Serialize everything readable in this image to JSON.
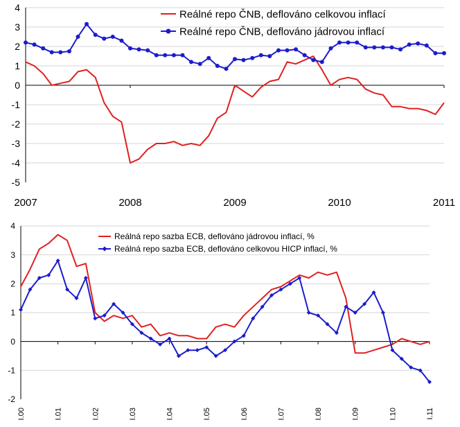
{
  "chart_data": [
    {
      "type": "line",
      "title": "",
      "xlabel": "",
      "ylabel": "",
      "ylim": [
        -5,
        4
      ],
      "y_ticks": [
        "4",
        "3",
        "2",
        "1",
        "0",
        "-1",
        "-2",
        "-3",
        "-4",
        "-5"
      ],
      "x_tick_labels": [
        "2007",
        "2008",
        "2009",
        "2010",
        "2011"
      ],
      "x_range": [
        2007,
        2011
      ],
      "grid": "horizontal",
      "legend_position": "top-right",
      "series": [
        {
          "name": "Reálné repo ČNB, deflováno celkovou inflací",
          "color": "#e02020",
          "marker": "none",
          "x": [
            2007.0,
            2007.083,
            2007.167,
            2007.25,
            2007.333,
            2007.417,
            2007.5,
            2007.583,
            2007.667,
            2007.75,
            2007.833,
            2007.917,
            2008.0,
            2008.083,
            2008.167,
            2008.25,
            2008.333,
            2008.417,
            2008.5,
            2008.583,
            2008.667,
            2008.75,
            2008.833,
            2008.917,
            2009.0,
            2009.083,
            2009.167,
            2009.25,
            2009.333,
            2009.417,
            2009.5,
            2009.583,
            2009.667,
            2009.75,
            2009.833,
            2009.917,
            2010.0,
            2010.083,
            2010.167,
            2010.25,
            2010.333,
            2010.417,
            2010.5,
            2010.583,
            2010.667,
            2010.75,
            2010.833,
            2010.917,
            2011.0
          ],
          "y": [
            1.2,
            1.0,
            0.6,
            0.0,
            0.1,
            0.2,
            0.7,
            0.8,
            0.4,
            -0.9,
            -1.6,
            -1.9,
            -4.0,
            -3.8,
            -3.3,
            -3.0,
            -3.0,
            -2.9,
            -3.1,
            -3.0,
            -3.1,
            -2.6,
            -1.7,
            -1.4,
            0.0,
            -0.3,
            -0.6,
            -0.1,
            0.2,
            0.3,
            1.2,
            1.1,
            1.3,
            1.5,
            0.8,
            0.0,
            0.3,
            0.4,
            0.3,
            -0.2,
            -0.4,
            -0.5,
            -1.1,
            -1.1,
            -1.2,
            -1.2,
            -1.3,
            -1.5,
            -0.9
          ]
        },
        {
          "name": "Reálné repo ČNB, deflováno jádrovou inflací",
          "color": "#1c1ccc",
          "marker": "circle",
          "x": [
            2007.0,
            2007.083,
            2007.167,
            2007.25,
            2007.333,
            2007.417,
            2007.5,
            2007.583,
            2007.667,
            2007.75,
            2007.833,
            2007.917,
            2008.0,
            2008.083,
            2008.167,
            2008.25,
            2008.333,
            2008.417,
            2008.5,
            2008.583,
            2008.667,
            2008.75,
            2008.833,
            2008.917,
            2009.0,
            2009.083,
            2009.167,
            2009.25,
            2009.333,
            2009.417,
            2009.5,
            2009.583,
            2009.667,
            2009.75,
            2009.833,
            2009.917,
            2010.0,
            2010.083,
            2010.167,
            2010.25,
            2010.333,
            2010.417,
            2010.5,
            2010.583,
            2010.667,
            2010.75,
            2010.833,
            2010.917,
            2011.0
          ],
          "y": [
            2.2,
            2.1,
            1.9,
            1.7,
            1.7,
            1.75,
            2.5,
            3.15,
            2.6,
            2.4,
            2.5,
            2.3,
            1.9,
            1.85,
            1.8,
            1.55,
            1.55,
            1.55,
            1.55,
            1.2,
            1.1,
            1.4,
            1.0,
            0.85,
            1.35,
            1.3,
            1.4,
            1.55,
            1.5,
            1.8,
            1.8,
            1.85,
            1.55,
            1.3,
            1.2,
            1.9,
            2.2,
            2.2,
            2.2,
            1.95,
            1.95,
            1.95,
            1.95,
            1.85,
            2.1,
            2.15,
            2.05,
            1.65,
            1.65
          ]
        }
      ]
    },
    {
      "type": "line",
      "title": "",
      "xlabel": "",
      "ylabel": "",
      "ylim": [
        -2,
        4
      ],
      "y_ticks": [
        "4",
        "3",
        "2",
        "1",
        "0",
        "-1",
        "-2"
      ],
      "x_tick_labels": [
        "I.00",
        "I.01",
        "I.02",
        "I.03",
        "I.04",
        "I.05",
        "I.06",
        "I.07",
        "I.08",
        "I.09",
        "I.10",
        "I.11"
      ],
      "x_range": [
        0,
        11
      ],
      "grid": "horizontal",
      "legend_position": "top-right",
      "series": [
        {
          "name": "Reálná repo sazba ECB, deflováno jádrovou inflací, %",
          "color": "#e02020",
          "marker": "none",
          "x": [
            0,
            0.25,
            0.5,
            0.75,
            1.0,
            1.25,
            1.5,
            1.75,
            2.0,
            2.25,
            2.5,
            2.75,
            3.0,
            3.25,
            3.5,
            3.75,
            4.0,
            4.25,
            4.5,
            4.75,
            5.0,
            5.25,
            5.5,
            5.75,
            6.0,
            6.25,
            6.5,
            6.75,
            7.0,
            7.25,
            7.5,
            7.75,
            8.0,
            8.25,
            8.5,
            8.75,
            9.0,
            9.25,
            9.5,
            9.75,
            10.0,
            10.25,
            10.5,
            10.75,
            11.0
          ],
          "y": [
            1.9,
            2.5,
            3.2,
            3.4,
            3.7,
            3.5,
            2.6,
            2.7,
            1.0,
            0.7,
            0.9,
            0.8,
            0.9,
            0.5,
            0.6,
            0.2,
            0.3,
            0.2,
            0.2,
            0.1,
            0.1,
            0.5,
            0.6,
            0.5,
            0.9,
            1.2,
            1.5,
            1.8,
            1.9,
            2.1,
            2.3,
            2.2,
            2.4,
            2.3,
            2.4,
            1.5,
            -0.4,
            -0.4,
            -0.3,
            -0.2,
            -0.1,
            0.1,
            0.0,
            -0.1,
            0.0
          ]
        },
        {
          "name": "Reálná repo sazba ECB, deflováno celkovou HICP inflací, %",
          "color": "#1c1ccc",
          "marker": "diamond",
          "x": [
            0,
            0.25,
            0.5,
            0.75,
            1.0,
            1.25,
            1.5,
            1.75,
            2.0,
            2.25,
            2.5,
            2.75,
            3.0,
            3.25,
            3.5,
            3.75,
            4.0,
            4.25,
            4.5,
            4.75,
            5.0,
            5.25,
            5.5,
            5.75,
            6.0,
            6.25,
            6.5,
            6.75,
            7.0,
            7.25,
            7.5,
            7.75,
            8.0,
            8.25,
            8.5,
            8.75,
            9.0,
            9.25,
            9.5,
            9.75,
            10.0,
            10.25,
            10.5,
            10.75,
            11.0
          ],
          "y": [
            1.1,
            1.8,
            2.2,
            2.3,
            2.8,
            1.8,
            1.5,
            2.2,
            0.8,
            0.9,
            1.3,
            1.0,
            0.6,
            0.3,
            0.1,
            -0.1,
            0.1,
            -0.5,
            -0.3,
            -0.3,
            -0.2,
            -0.5,
            -0.3,
            0.0,
            0.2,
            0.8,
            1.2,
            1.6,
            1.8,
            2.0,
            2.2,
            1.0,
            0.9,
            0.6,
            0.3,
            1.2,
            1.0,
            1.3,
            1.7,
            1.0,
            -0.3,
            -0.6,
            -0.9,
            -1.0,
            -1.4
          ]
        }
      ]
    }
  ]
}
